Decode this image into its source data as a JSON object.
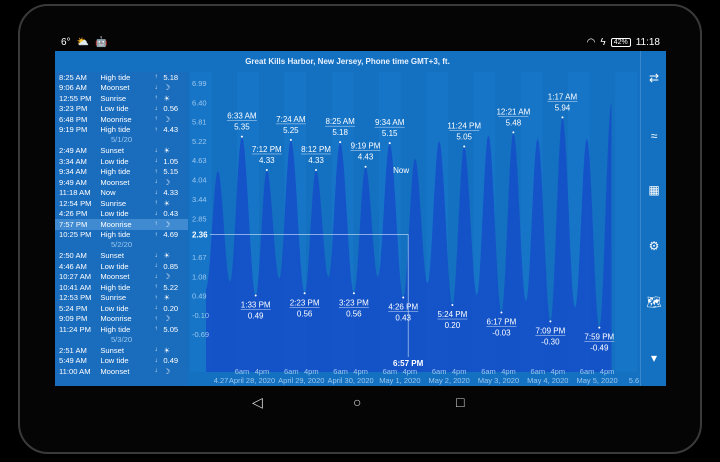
{
  "status": {
    "left": [
      "6°",
      "⛅",
      "🤖"
    ],
    "battery": "42%",
    "time": "11:18"
  },
  "title": "Great Kills Harbor, New Jersey, Phone time GMT+3, ft.",
  "list": [
    {
      "type": "row",
      "time": "8:25 AM",
      "event": "High tide",
      "arrow": "↑",
      "value": "5.18"
    },
    {
      "type": "row",
      "time": "9:06 AM",
      "event": "Moonset",
      "arrow": "↓",
      "value": "☽"
    },
    {
      "type": "row",
      "time": "12:55 PM",
      "event": "Sunrise",
      "arrow": "↑",
      "value": "☀"
    },
    {
      "type": "row",
      "time": "3:23 PM",
      "event": "Low tide",
      "arrow": "↓",
      "value": "0.56"
    },
    {
      "type": "row",
      "time": "6:48 PM",
      "event": "Moonrise",
      "arrow": "↑",
      "value": "☽"
    },
    {
      "type": "row",
      "time": "9:19 PM",
      "event": "High tide",
      "arrow": "↑",
      "value": "4.43"
    },
    {
      "type": "date",
      "label": "5/1/20"
    },
    {
      "type": "row",
      "time": "2:49 AM",
      "event": "Sunset",
      "arrow": "↓",
      "value": "☀"
    },
    {
      "type": "row",
      "time": "3:34 AM",
      "event": "Low tide",
      "arrow": "↓",
      "value": "1.05"
    },
    {
      "type": "row",
      "time": "9:34 AM",
      "event": "High tide",
      "arrow": "↑",
      "value": "5.15"
    },
    {
      "type": "row",
      "time": "9:49 AM",
      "event": "Moonset",
      "arrow": "↓",
      "value": "☽"
    },
    {
      "type": "row",
      "time": "11:18 AM",
      "event": "Now",
      "arrow": "↓",
      "value": "4.33"
    },
    {
      "type": "row",
      "time": "12:54 PM",
      "event": "Sunrise",
      "arrow": "↑",
      "value": "☀"
    },
    {
      "type": "row",
      "time": "4:26 PM",
      "event": "Low tide",
      "arrow": "↓",
      "value": "0.43"
    },
    {
      "type": "row",
      "time": "7:57 PM",
      "event": "Moonrise",
      "arrow": "↑",
      "value": "☽",
      "selected": true
    },
    {
      "type": "row",
      "time": "10:25 PM",
      "event": "High tide",
      "arrow": "↑",
      "value": "4.69"
    },
    {
      "type": "date",
      "label": "5/2/20"
    },
    {
      "type": "row",
      "time": "2:50 AM",
      "event": "Sunset",
      "arrow": "↓",
      "value": "☀"
    },
    {
      "type": "row",
      "time": "4:46 AM",
      "event": "Low tide",
      "arrow": "↓",
      "value": "0.85"
    },
    {
      "type": "row",
      "time": "10:27 AM",
      "event": "Moonset",
      "arrow": "↓",
      "value": "☽"
    },
    {
      "type": "row",
      "time": "10:41 AM",
      "event": "High tide",
      "arrow": "↑",
      "value": "5.22"
    },
    {
      "type": "row",
      "time": "12:53 PM",
      "event": "Sunrise",
      "arrow": "↑",
      "value": "☀"
    },
    {
      "type": "row",
      "time": "5:24 PM",
      "event": "Low tide",
      "arrow": "↓",
      "value": "0.20"
    },
    {
      "type": "row",
      "time": "9:09 PM",
      "event": "Moonrise",
      "arrow": "↑",
      "value": "☽"
    },
    {
      "type": "row",
      "time": "11:24 PM",
      "event": "High tide",
      "arrow": "↑",
      "value": "5.05"
    },
    {
      "type": "date",
      "label": "5/3/20"
    },
    {
      "type": "row",
      "time": "2:51 AM",
      "event": "Sunset",
      "arrow": "↓",
      "value": "☀"
    },
    {
      "type": "row",
      "time": "5:49 AM",
      "event": "Low tide",
      "arrow": "↓",
      "value": "0.49"
    },
    {
      "type": "row",
      "time": "11:00 AM",
      "event": "Moonset",
      "arrow": "↓",
      "value": "☽"
    }
  ],
  "chart_data": {
    "type": "area",
    "yticks": [
      "6.99",
      "6.40",
      "5.81",
      "5.22",
      "4.63",
      "4.04",
      "3.44",
      "2.85",
      "1.67",
      "1.08",
      "0.49",
      "-0.10",
      "-0.69"
    ],
    "ylim": [
      -0.69,
      6.99
    ],
    "x_hour_ticks": [
      "6am",
      "4pm"
    ],
    "x_days": [
      "4.27",
      "April 28, 2020",
      "April 29, 2020",
      "April 30, 2020",
      "May 1, 2020",
      "May 2, 2020",
      "May 3, 2020",
      "May 4, 2020",
      "May 5, 2020",
      "5.6"
    ],
    "extremes": [
      {
        "t": "2020-04-27T12:20",
        "v": 0.7
      },
      {
        "t": "2020-04-27T18:20",
        "v": 4.3
      },
      {
        "t": "2020-04-28T00:30",
        "v": 0.9
      },
      {
        "t": "2020-04-28T06:33",
        "v": 5.35,
        "label": "6:33 AM"
      },
      {
        "t": "2020-04-28T13:33",
        "v": 0.49,
        "label": "1:33 PM"
      },
      {
        "t": "2020-04-28T19:12",
        "v": 4.33,
        "label": "7:12 PM"
      },
      {
        "t": "2020-04-29T01:30",
        "v": 1.0
      },
      {
        "t": "2020-04-29T07:24",
        "v": 5.25,
        "label": "7:24 AM"
      },
      {
        "t": "2020-04-29T14:23",
        "v": 0.56,
        "label": "2:23 PM"
      },
      {
        "t": "2020-04-29T20:12",
        "v": 4.33,
        "label": "8:12 PM"
      },
      {
        "t": "2020-04-30T02:30",
        "v": 1.05
      },
      {
        "t": "2020-04-30T08:25",
        "v": 5.18,
        "label": "8:25 AM"
      },
      {
        "t": "2020-04-30T15:23",
        "v": 0.56,
        "label": "3:23 PM"
      },
      {
        "t": "2020-04-30T21:19",
        "v": 4.43,
        "label": "9:19 PM"
      },
      {
        "t": "2020-05-01T03:34",
        "v": 1.05
      },
      {
        "t": "2020-05-01T09:34",
        "v": 5.15,
        "label": "9:34 AM"
      },
      {
        "t": "2020-05-01T16:26",
        "v": 0.43,
        "label": "4:26 PM"
      },
      {
        "t": "2020-05-01T22:25",
        "v": 4.69
      },
      {
        "t": "2020-05-02T04:46",
        "v": 0.85
      },
      {
        "t": "2020-05-02T10:41",
        "v": 5.22
      },
      {
        "t": "2020-05-02T17:24",
        "v": 0.2,
        "label": "5:24 PM"
      },
      {
        "t": "2020-05-02T23:24",
        "v": 5.05,
        "label": "11:24 PM"
      },
      {
        "t": "2020-05-03T05:49",
        "v": 0.49
      },
      {
        "t": "2020-05-03T11:40",
        "v": 5.4
      },
      {
        "t": "2020-05-03T18:17",
        "v": -0.03,
        "label": "6:17 PM"
      },
      {
        "t": "2020-05-04T00:21",
        "v": 5.48,
        "label": "12:21 AM"
      },
      {
        "t": "2020-05-04T06:45",
        "v": 0.3
      },
      {
        "t": "2020-05-04T12:40",
        "v": 5.3
      },
      {
        "t": "2020-05-04T19:09",
        "v": -0.3,
        "label": "7:09 PM"
      },
      {
        "t": "2020-05-05T01:17",
        "v": 5.94,
        "label": "1:17 AM"
      },
      {
        "t": "2020-05-05T07:40",
        "v": 0.1
      },
      {
        "t": "2020-05-05T13:40",
        "v": 5.3
      },
      {
        "t": "2020-05-05T19:59",
        "v": -0.49,
        "label": "7:59 PM"
      },
      {
        "t": "2020-05-06T02:10",
        "v": 6.4
      }
    ],
    "now": {
      "t": "2020-05-01T11:18",
      "v": 4.33,
      "label": "Now"
    },
    "cursor": {
      "t": "2020-05-01T18:57",
      "v": 2.36,
      "time_label": "6:57 PM",
      "value_label": "2.36"
    },
    "colors": {
      "background": "#1470c0",
      "fill": "#1450c8",
      "text": "#ffffff",
      "axis": "#9cc8ee"
    }
  },
  "tools": [
    {
      "icon": "swap-arrows-icon",
      "glyph": "⇄"
    },
    {
      "icon": "waves-icon",
      "glyph": "≈"
    },
    {
      "icon": "grid-icon",
      "glyph": "▦"
    },
    {
      "icon": "gear-icon",
      "glyph": "⚙"
    },
    {
      "icon": "map-icon",
      "glyph": "🗺"
    },
    {
      "icon": "chevron-down-icon",
      "glyph": "▾"
    }
  ],
  "nav": {
    "back": "◁",
    "home": "○",
    "recents": "□"
  }
}
